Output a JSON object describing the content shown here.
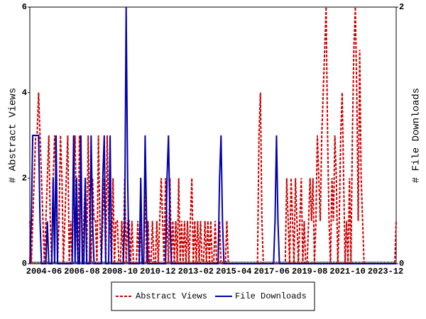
{
  "chart_data": {
    "type": "line",
    "y_label": "# Abstract Views",
    "y2_label": "# File Downloads",
    "categories": [
      "2004-06",
      null,
      null,
      null,
      null,
      null,
      null,
      null,
      null,
      null,
      null,
      null,
      null,
      null,
      null,
      null,
      null,
      null,
      null,
      null,
      null,
      null,
      null,
      null,
      null,
      null,
      "2006-08",
      null,
      null,
      null,
      null,
      null,
      null,
      null,
      null,
      null,
      null,
      null,
      null,
      null,
      null,
      null,
      null,
      null,
      null,
      null,
      null,
      null,
      null,
      null,
      null,
      null,
      "2008-10",
      null,
      null,
      null,
      null,
      null,
      null,
      null,
      null,
      null,
      null,
      null,
      null,
      null,
      null,
      null,
      null,
      null,
      null,
      null,
      null,
      null,
      null,
      null,
      null,
      null,
      "2010-12",
      null,
      null,
      null,
      null,
      null,
      null,
      null,
      null,
      null,
      null,
      null,
      null,
      null,
      null,
      null,
      null,
      null,
      null,
      null,
      null,
      null,
      null,
      null,
      null,
      null,
      "2013-02",
      null,
      null,
      null,
      null,
      null,
      null,
      null,
      null,
      null,
      null,
      null,
      null,
      null,
      null,
      null,
      null,
      null,
      null,
      null,
      null,
      null,
      null,
      null,
      null,
      null,
      "2015-04",
      null,
      null,
      null,
      null,
      null,
      null,
      null,
      null,
      null,
      null,
      null,
      null,
      null,
      null,
      null,
      null,
      null,
      null,
      null,
      null,
      null,
      null,
      null,
      null,
      null,
      "2017-06",
      null,
      null,
      null,
      null,
      null,
      null,
      null,
      null,
      null,
      null,
      null,
      null,
      null,
      null,
      null,
      null,
      null,
      null,
      null,
      null,
      null,
      null,
      null,
      null,
      null,
      "2019-08",
      null,
      null,
      null,
      null,
      null,
      null,
      null,
      null,
      null,
      null,
      null,
      null,
      null,
      null,
      null,
      null,
      null,
      null,
      null,
      null,
      null,
      null,
      null,
      null,
      null,
      "2021-10",
      null,
      null,
      null,
      null,
      null,
      null,
      null,
      null,
      null,
      null,
      null,
      null,
      null,
      null,
      null,
      null,
      null,
      null,
      null,
      null,
      null,
      null,
      null,
      null,
      null,
      "2023-12",
      null,
      null,
      null,
      null,
      null,
      null,
      null,
      null,
      null,
      null,
      null,
      null,
      null,
      null,
      null,
      null,
      null
    ],
    "series": [
      {
        "name": "Abstract Views",
        "color": "#cc0000",
        "dash": true,
        "values": [
          1,
          0,
          1,
          2,
          3,
          3,
          4,
          3,
          2,
          1,
          0,
          1,
          2,
          3,
          1,
          0,
          2,
          3,
          2,
          0,
          1,
          3,
          2,
          0,
          1,
          2,
          3,
          0,
          1,
          0,
          2,
          3,
          1,
          0,
          3,
          2,
          0,
          1,
          2,
          0,
          3,
          1,
          0,
          2,
          1,
          1,
          0,
          3,
          1,
          0,
          1,
          2,
          0,
          3,
          1,
          1,
          0,
          2,
          0,
          1,
          1,
          0,
          0,
          1,
          0,
          2,
          0,
          1,
          1,
          0,
          1,
          0,
          0,
          0,
          1,
          0,
          1,
          0,
          0,
          2,
          0,
          1,
          0,
          0,
          1,
          0,
          0,
          1,
          0,
          1,
          2,
          1,
          0,
          2,
          1,
          0,
          2,
          0,
          1,
          0,
          1,
          0,
          2,
          0,
          1,
          0,
          1,
          0,
          1,
          0,
          1,
          2,
          0,
          1,
          0,
          1,
          0,
          1,
          0,
          0,
          1,
          0,
          1,
          0,
          1,
          0,
          0,
          1,
          0,
          0,
          1,
          0,
          0,
          0,
          0,
          1,
          0,
          0,
          0,
          0,
          0,
          0,
          0,
          0,
          0,
          0,
          0,
          0,
          0,
          0,
          0,
          0,
          0,
          0,
          0,
          0,
          0,
          3,
          4,
          1,
          0,
          0,
          0,
          0,
          0,
          0,
          0,
          0,
          0,
          0,
          0,
          0,
          0,
          0,
          0,
          0,
          2,
          1,
          0,
          2,
          1,
          0,
          2,
          1,
          0,
          1,
          2,
          0,
          1,
          0,
          0,
          1,
          2,
          1,
          2,
          0,
          1,
          3,
          2,
          1,
          3,
          4,
          5,
          6,
          3,
          1,
          0,
          2,
          1,
          3,
          2,
          0,
          1,
          3,
          4,
          2,
          0,
          1,
          0,
          2,
          0,
          3,
          5,
          6,
          4,
          1,
          5,
          2,
          1,
          0,
          0,
          0,
          0,
          0,
          0,
          0,
          0,
          0,
          0,
          0,
          0,
          0,
          0,
          0,
          0,
          0,
          0,
          0,
          0,
          0,
          0,
          1
        ]
      },
      {
        "name": "File Downloads",
        "color": "#0000aa",
        "axis": "y2",
        "values": [
          0,
          0.33,
          1,
          1,
          1,
          1,
          1,
          0.33,
          0,
          0,
          0,
          0,
          0.33,
          0,
          0,
          0,
          0.67,
          0,
          1,
          0,
          0,
          0,
          0,
          0,
          0,
          0,
          0,
          0,
          0,
          0,
          1,
          0,
          0.67,
          0,
          0,
          1,
          0,
          0,
          0.67,
          0,
          0,
          0,
          1,
          0.33,
          0,
          0,
          0,
          0,
          0,
          0,
          0.67,
          1,
          0,
          0,
          0,
          1,
          0,
          0,
          0,
          0,
          0,
          0,
          0,
          0,
          0,
          0.33,
          2,
          0.67,
          0,
          0,
          0,
          0,
          0,
          0,
          0,
          0,
          0.67,
          0,
          0,
          1,
          0.33,
          0,
          0,
          0,
          0,
          0,
          0,
          0,
          0,
          0,
          0,
          0,
          0,
          0,
          0.67,
          1,
          0.33,
          0,
          0,
          0,
          0,
          0,
          0,
          0,
          0,
          0,
          0,
          0,
          0,
          0,
          0,
          0,
          0,
          0,
          0,
          0,
          0,
          0,
          0,
          0,
          0,
          0,
          0,
          0,
          0,
          0,
          0,
          0,
          0,
          0,
          0.67,
          1,
          0.33,
          0,
          0,
          0,
          0,
          0,
          0,
          0,
          0,
          0,
          0,
          0,
          0,
          0,
          0,
          0,
          0,
          0,
          0,
          0,
          0,
          0,
          0,
          0,
          0,
          0,
          0,
          0,
          0,
          0,
          0,
          0,
          0,
          0,
          0,
          0,
          0.33,
          1,
          0.33,
          0,
          0,
          0,
          0,
          0,
          0,
          0,
          0,
          0,
          0,
          0,
          0,
          0,
          0,
          0,
          0,
          0,
          0,
          0,
          0,
          0,
          0,
          0,
          0,
          0,
          0,
          0,
          0,
          0,
          0,
          0,
          0,
          0,
          0,
          0,
          0,
          0,
          0,
          0,
          0,
          0,
          0,
          0,
          0,
          0,
          0,
          0,
          0,
          0,
          0,
          0,
          0,
          0,
          0,
          0,
          0,
          0,
          0,
          0,
          0,
          0,
          0,
          0,
          0,
          0,
          0,
          0,
          0,
          0,
          0,
          0,
          0,
          0,
          0,
          0,
          0,
          0,
          0,
          0,
          0,
          0
        ]
      }
    ],
    "ylim": [
      0,
      6
    ],
    "yticks": [
      0,
      2,
      4,
      6
    ],
    "y2lim": [
      0,
      2
    ],
    "y2ticks": [
      0,
      2
    ],
    "grid": false,
    "legend": "bottom"
  }
}
